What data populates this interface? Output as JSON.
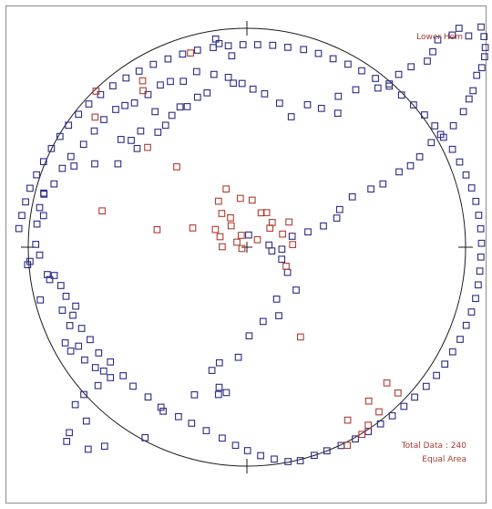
{
  "colors": {
    "primary": "#2b2a86",
    "secondary": "#b13a30",
    "outline": "#1a1a1a"
  },
  "chart_data": {
    "type": "scatter",
    "title": "",
    "xlabel": "",
    "ylabel": "",
    "xlim": [
      -1,
      1
    ],
    "ylim": [
      -1,
      1
    ],
    "grid": false,
    "annotations": {
      "top_right": "Lower Hem",
      "bottom_right_1": "Total Data : 240",
      "bottom_right_2": "Equal Area"
    },
    "series": [
      {
        "color": "#2b2a86",
        "points": [
          [
            -0.143,
            0.951
          ],
          [
            -0.127,
            0.93
          ],
          [
            -0.069,
            0.874
          ],
          [
            -0.062,
            0.749
          ],
          [
            -0.182,
            0.705
          ],
          [
            -0.226,
            0.685
          ],
          [
            -0.273,
            0.642
          ],
          [
            -0.306,
            0.641
          ],
          [
            -0.343,
            0.602
          ],
          [
            -0.372,
            0.557
          ],
          [
            -0.42,
            0.619
          ],
          [
            -0.407,
            0.525
          ],
          [
            -0.486,
            0.531
          ],
          [
            -0.502,
            0.451
          ],
          [
            -0.529,
            0.488
          ],
          [
            -0.576,
            0.492
          ],
          [
            -0.59,
            0.381
          ],
          [
            -0.696,
            0.381
          ],
          [
            -0.791,
            0.371
          ],
          [
            -0.929,
            0.247
          ],
          [
            -0.928,
            0.242
          ],
          [
            -0.948,
            0.181
          ],
          [
            -0.96,
            0.106
          ],
          [
            -0.992,
            -0.065
          ],
          [
            -1.003,
            -0.08
          ],
          [
            -0.913,
            -0.125
          ],
          [
            -0.902,
            -0.148
          ],
          [
            -0.945,
            -0.241
          ],
          [
            -0.844,
            -0.288
          ],
          [
            -0.783,
            -0.269
          ],
          [
            -0.81,
            -0.358
          ],
          [
            -0.831,
            -0.437
          ],
          [
            -0.77,
            -0.452
          ],
          [
            -0.806,
            -0.474
          ],
          [
            -0.742,
            -0.515
          ],
          [
            -0.693,
            -0.55
          ],
          [
            -0.655,
            -0.566
          ],
          [
            -0.624,
            -0.596
          ],
          [
            -0.681,
            -0.632
          ],
          [
            -0.746,
            -0.673
          ],
          [
            -0.785,
            -0.719
          ],
          [
            -0.734,
            -0.794
          ],
          [
            -0.812,
            -0.847
          ],
          [
            -0.824,
            -0.887
          ],
          [
            -0.726,
            -0.923
          ],
          [
            -0.651,
            -0.909
          ],
          [
            -0.466,
            -0.87
          ],
          [
            -0.383,
            -0.749
          ],
          [
            -0.24,
            -0.674
          ],
          [
            -0.127,
            -0.64
          ],
          [
            -0.13,
            -0.673
          ],
          [
            -0.094,
            -0.664
          ],
          [
            -0.16,
            -0.563
          ],
          [
            -0.126,
            -0.528
          ],
          [
            -0.039,
            -0.503
          ],
          [
            0.01,
            -0.405
          ],
          [
            0.074,
            -0.339
          ],
          [
            0.146,
            -0.313
          ],
          [
            0.136,
            -0.237
          ],
          [
            0.225,
            -0.196
          ],
          [
            0.186,
            -0.115
          ],
          [
            0.159,
            -0.055
          ],
          [
            0.101,
            0.01
          ],
          [
            0.008,
            0.056
          ],
          [
            0.114,
            -0.017
          ],
          [
            0.16,
            -0.009
          ],
          [
            0.207,
            0.05
          ],
          [
            0.279,
            0.07
          ],
          [
            0.35,
            0.097
          ],
          [
            0.411,
            0.133
          ],
          [
            0.424,
            0.172
          ],
          [
            0.482,
            0.23
          ],
          [
            0.567,
            0.266
          ],
          [
            0.622,
            0.289
          ],
          [
            0.696,
            0.344
          ],
          [
            0.748,
            0.372
          ],
          [
            0.79,
            0.413
          ],
          [
            0.843,
            0.478
          ],
          [
            0.886,
            0.515
          ],
          [
            0.944,
            0.555
          ],
          [
            0.99,
            0.619
          ],
          [
            1.016,
            0.677
          ],
          [
            1.034,
            0.715
          ],
          [
            1.051,
            0.785
          ],
          [
            1.074,
            0.82
          ],
          [
            1.087,
            0.87
          ],
          [
            1.09,
            0.912
          ],
          [
            1.084,
            0.962
          ],
          [
            1.071,
            1.006
          ],
          [
            1.014,
            0.965
          ],
          [
            0.97,
            1.0
          ],
          [
            0.939,
            0.969
          ],
          [
            0.873,
            0.947
          ],
          [
            0.85,
            0.893
          ],
          [
            0.825,
            0.85
          ],
          [
            0.751,
            0.824
          ],
          [
            0.694,
            0.789
          ],
          [
            0.651,
            0.746
          ],
          [
            0.599,
            0.727
          ],
          [
            0.498,
            0.719
          ],
          [
            0.418,
            0.689
          ],
          [
            0.416,
            0.612
          ],
          [
            0.341,
            0.634
          ],
          [
            0.277,
            0.651
          ],
          [
            0.203,
            0.596
          ],
          [
            0.149,
            0.658
          ],
          [
            0.081,
            0.701
          ],
          [
            0.028,
            0.722
          ],
          [
            -0.022,
            0.748
          ],
          [
            -0.085,
            0.776
          ],
          [
            -0.151,
            0.789
          ],
          [
            -0.23,
            0.802
          ],
          [
            -0.291,
            0.758
          ],
          [
            -0.35,
            0.757
          ],
          [
            -0.396,
            0.741
          ],
          [
            -0.452,
            0.697
          ],
          [
            -0.514,
            0.659
          ],
          [
            -0.558,
            0.647
          ],
          [
            -0.6,
            0.629
          ],
          [
            -0.654,
            0.583
          ],
          [
            -0.698,
            0.531
          ],
          [
            -0.747,
            0.47
          ],
          [
            -0.805,
            0.414
          ],
          [
            -0.844,
            0.36
          ],
          [
            -0.882,
            0.289
          ],
          [
            -0.93,
            0.144
          ],
          [
            -0.966,
            0.013
          ],
          [
            -0.948,
            -0.036
          ],
          [
            -0.881,
            -0.129
          ],
          [
            -0.851,
            -0.175
          ],
          [
            -0.827,
            -0.224
          ],
          [
            -0.796,
            -0.311
          ],
          [
            -0.756,
            -0.371
          ],
          [
            -0.717,
            -0.422
          ],
          [
            -0.678,
            -0.483
          ],
          [
            -0.624,
            -0.524
          ],
          [
            -0.566,
            -0.587
          ],
          [
            -0.521,
            -0.635
          ],
          [
            -0.452,
            -0.684
          ],
          [
            -0.393,
            -0.731
          ],
          [
            -0.313,
            -0.774
          ],
          [
            -0.253,
            -0.804
          ],
          [
            -0.186,
            -0.838
          ],
          [
            -0.113,
            -0.872
          ],
          [
            -0.052,
            -0.905
          ],
          [
            0.003,
            -0.929
          ],
          [
            0.063,
            -0.952
          ],
          [
            0.125,
            -0.968
          ],
          [
            0.188,
            -0.979
          ],
          [
            0.244,
            -0.975
          ],
          [
            0.308,
            -0.951
          ],
          [
            0.366,
            -0.93
          ],
          [
            0.431,
            -0.906
          ],
          [
            0.496,
            -0.876
          ],
          [
            0.555,
            -0.842
          ],
          [
            0.611,
            -0.807
          ],
          [
            0.665,
            -0.77
          ],
          [
            0.718,
            -0.727
          ],
          [
            0.767,
            -0.685
          ],
          [
            0.82,
            -0.636
          ],
          [
            0.867,
            -0.586
          ],
          [
            0.905,
            -0.534
          ],
          [
            0.941,
            -0.478
          ],
          [
            0.975,
            -0.421
          ],
          [
            1.003,
            -0.357
          ],
          [
            1.027,
            -0.296
          ],
          [
            1.046,
            -0.234
          ],
          [
            1.058,
            -0.172
          ],
          [
            1.065,
            -0.109
          ],
          [
            1.07,
            -0.045
          ],
          [
            1.073,
            0.018
          ],
          [
            1.069,
            0.084
          ],
          [
            1.06,
            0.146
          ],
          [
            1.047,
            0.209
          ],
          [
            1.028,
            0.271
          ],
          [
            1.002,
            0.33
          ],
          [
            0.973,
            0.389
          ],
          [
            0.94,
            0.447
          ],
          [
            0.899,
            0.502
          ],
          [
            0.859,
            0.554
          ],
          [
            0.812,
            0.604
          ],
          [
            0.762,
            0.65
          ],
          [
            0.707,
            0.695
          ],
          [
            0.651,
            0.736
          ],
          [
            0.588,
            0.771
          ],
          [
            0.525,
            0.806
          ],
          [
            0.462,
            0.836
          ],
          [
            0.394,
            0.861
          ],
          [
            0.327,
            0.885
          ],
          [
            0.259,
            0.903
          ],
          [
            0.187,
            0.913
          ],
          [
            0.118,
            0.922
          ],
          [
            0.049,
            0.925
          ],
          [
            -0.018,
            0.925
          ],
          [
            -0.085,
            0.92
          ],
          [
            -0.154,
            0.912
          ],
          [
            -0.226,
            0.9
          ],
          [
            -0.294,
            0.882
          ],
          [
            -0.361,
            0.86
          ],
          [
            -0.428,
            0.835
          ],
          [
            -0.493,
            0.804
          ],
          [
            -0.553,
            0.773
          ],
          [
            -0.613,
            0.737
          ],
          [
            -0.669,
            0.697
          ],
          [
            -0.723,
            0.654
          ],
          [
            -0.77,
            0.607
          ],
          [
            -0.816,
            0.557
          ],
          [
            -0.855,
            0.506
          ],
          [
            -0.894,
            0.451
          ],
          [
            -0.93,
            0.391
          ],
          [
            -0.962,
            0.331
          ],
          [
            -0.992,
            0.269
          ],
          [
            -1.012,
            0.207
          ],
          [
            -1.029,
            0.145
          ],
          [
            -1.043,
            0.085
          ]
        ]
      },
      {
        "color": "#b13a30",
        "points": [
          [
            -0.258,
            0.887
          ],
          [
            -0.69,
            0.713
          ],
          [
            -0.477,
            0.76
          ],
          [
            -0.475,
            0.715
          ],
          [
            -0.694,
            0.594
          ],
          [
            -0.454,
            0.456
          ],
          [
            -0.321,
            0.367
          ],
          [
            -0.662,
            0.166
          ],
          [
            -0.411,
            0.08
          ],
          [
            -0.248,
            0.088
          ],
          [
            -0.144,
            0.081
          ],
          [
            -0.123,
            0.048
          ],
          [
            -0.113,
            0.002
          ],
          [
            -0.046,
            0.023
          ],
          [
            -0.026,
            0.054
          ],
          [
            -0.075,
            0.134
          ],
          [
            -0.13,
            0.21
          ],
          [
            -0.095,
            0.266
          ],
          [
            -0.03,
            0.223
          ],
          [
            0.024,
            0.215
          ],
          [
            0.065,
            0.157
          ],
          [
            0.105,
            0.087
          ],
          [
            0.163,
            0.06
          ],
          [
            0.209,
            0.012
          ],
          [
            -0.072,
            0.098
          ],
          [
            -0.115,
            0.154
          ],
          [
            -0.023,
            -0.006
          ],
          [
            0.048,
            0.034
          ],
          [
            0.116,
            0.113
          ],
          [
            0.09,
            0.158
          ],
          [
            0.192,
            0.115
          ],
          [
            0.179,
            -0.087
          ],
          [
            0.245,
            -0.41
          ],
          [
            0.557,
            -0.703
          ],
          [
            0.461,
            -0.79
          ],
          [
            0.604,
            -0.752
          ],
          [
            0.691,
            -0.666
          ],
          [
            0.64,
            -0.62
          ],
          [
            0.555,
            -0.813
          ],
          [
            0.526,
            -0.855
          ],
          [
            0.459,
            -0.905
          ]
        ]
      }
    ]
  }
}
